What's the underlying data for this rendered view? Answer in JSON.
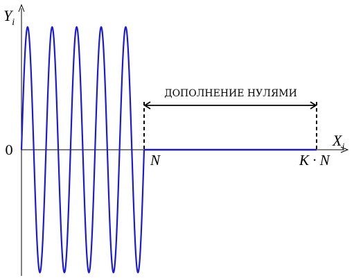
{
  "labels": {
    "y_axis": {
      "main": "Y",
      "sub": "i"
    },
    "x_axis": {
      "main": "X",
      "sub": "i"
    },
    "origin": "0",
    "n_mark": "N",
    "kn_mark": "K · N",
    "padding_caption": "ДОПОЛНЕНИЕ НУЛЯМИ"
  },
  "signal": {
    "periods": 5,
    "amplitude": 1,
    "zero_padding_factor": 2.4
  },
  "colors": {
    "signal": "#1b1bd6",
    "axis": "#000000"
  }
}
